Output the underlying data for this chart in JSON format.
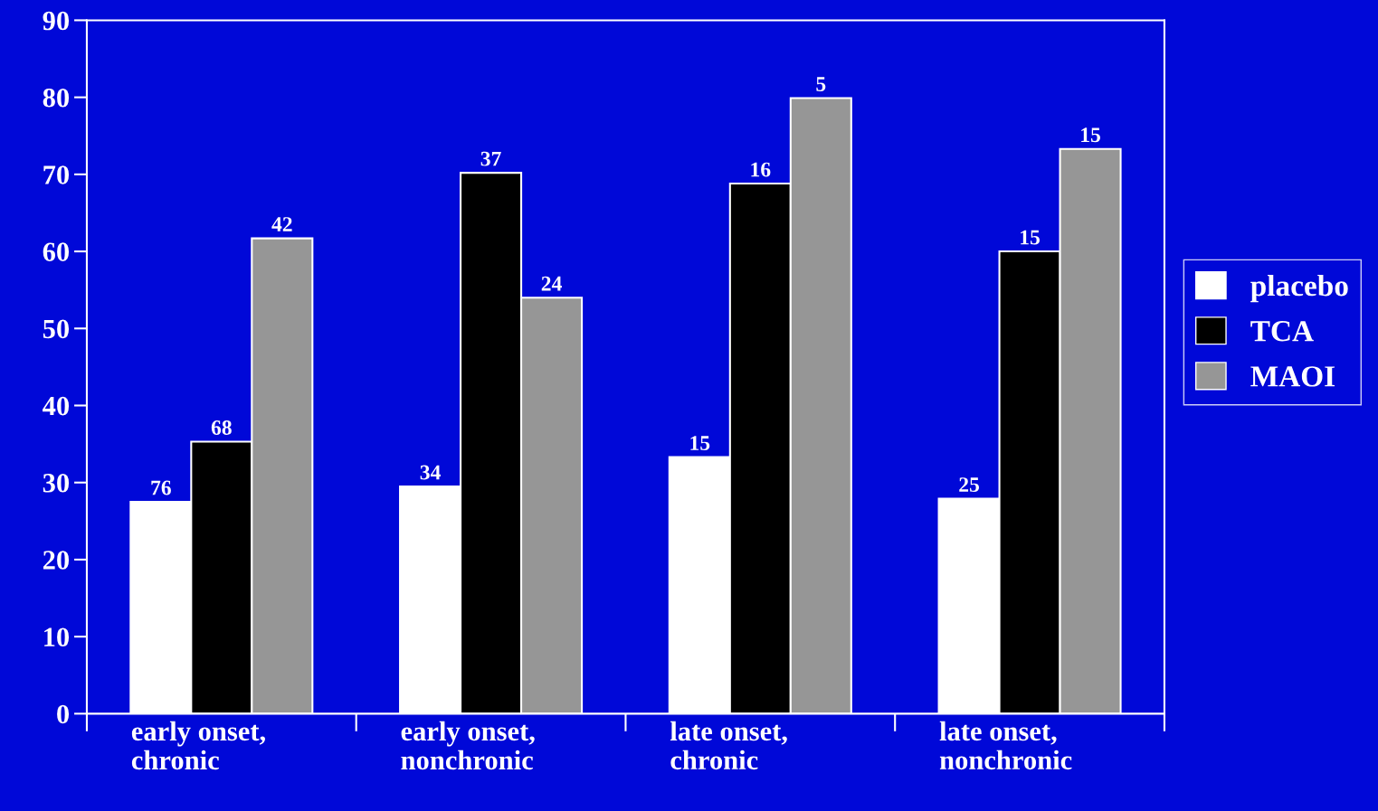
{
  "chart_data": {
    "type": "bar",
    "categories": [
      "early onset,\nchronic",
      "early onset,\nnonchronic",
      "late onset,\nchronic",
      "late onset,\nnonchronic"
    ],
    "series": [
      {
        "name": "placebo",
        "color": "#ffffff",
        "values": [
          27.5,
          29.5,
          33.3,
          27.9
        ]
      },
      {
        "name": "TCA",
        "color": "#000000",
        "values": [
          35.3,
          70.2,
          68.8,
          60.0
        ]
      },
      {
        "name": "MAOI",
        "color": "#969696",
        "values": [
          61.7,
          54.0,
          79.9,
          73.3
        ]
      }
    ],
    "annotations": [
      "76",
      "68",
      "42",
      "34",
      "37",
      "24",
      "15",
      "16",
      "5",
      "25",
      "15",
      "15"
    ],
    "ylim": [
      0,
      90
    ],
    "yticks": [
      0,
      10,
      20,
      30,
      40,
      50,
      60,
      70,
      80,
      90
    ],
    "grid": false,
    "legend": "right"
  }
}
